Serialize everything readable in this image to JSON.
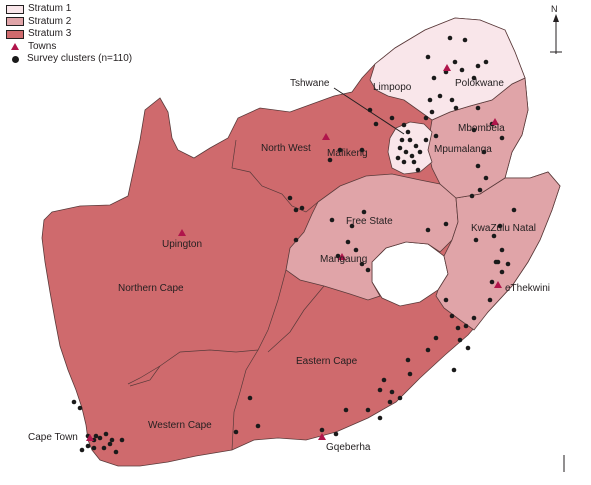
{
  "legend": {
    "stratum1": "Stratum 1",
    "stratum2": "Stratum 2",
    "stratum3": "Stratum 3",
    "towns": "Towns",
    "clusters": "Survey clusters (n=110)"
  },
  "colors": {
    "stratum1": "#f9e6ea",
    "stratum2": "#e0a4a8",
    "stratum3": "#cf6a6d",
    "town": "#b0154b",
    "cluster": "#1a1a1a",
    "border": "#5a3a3a",
    "lesotho": "#ffffff"
  },
  "compass": {
    "north": "N"
  },
  "provinces": {
    "limpopo": "Limpopo",
    "mpumalanga": "Mpumalanga",
    "north_west": "North West",
    "free_state": "Free State",
    "kwazulu_natal": "KwaZulu Natal",
    "northern_cape": "Northern Cape",
    "eastern_cape": "Eastern Cape",
    "western_cape": "Western Cape"
  },
  "towns": {
    "polokwane": "Polokwane",
    "tshwane": "Tshwane",
    "mbombela": "Mbombela",
    "mafikeng": "Mafikeng",
    "upington": "Upington",
    "mangaung": "Mangaung",
    "ethekwini": "eThekwini",
    "cape_town": "Cape Town",
    "gqeberha": "Gqeberha"
  }
}
